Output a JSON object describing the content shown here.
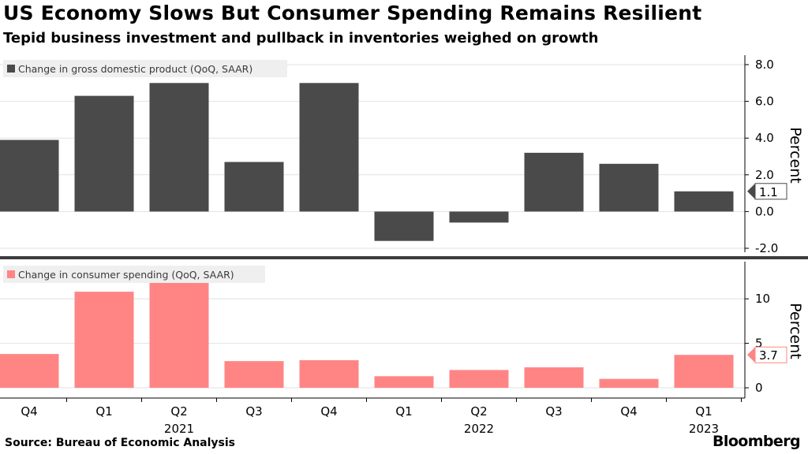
{
  "header": {
    "title": "US Economy Slows But Consumer Spending Remains Resilient",
    "subtitle": "Tepid business investment and pullback in inventories weighed on growth"
  },
  "footer": {
    "source": "Source: Bureau of Economic Analysis",
    "brand": "Bloomberg"
  },
  "colors": {
    "gdp_bar": "#4a4a4a",
    "spending_bar": "#ff8585",
    "grid": "#e2e2e2",
    "divider": "#3c3c3c",
    "axis_line": "#000000"
  },
  "chart_data": [
    {
      "type": "bar",
      "legend": "Change in gross domestic product (QoQ, SAAR)",
      "ylabel": "Percent",
      "categories": [
        "Q4",
        "Q1",
        "Q2",
        "Q3",
        "Q4",
        "Q1",
        "Q2",
        "Q3",
        "Q4",
        "Q1"
      ],
      "year_labels": [
        "",
        "",
        "2021",
        "",
        "",
        "",
        "2022",
        "",
        "",
        "2023"
      ],
      "values": [
        3.9,
        6.3,
        7.0,
        2.7,
        7.0,
        -1.6,
        -0.6,
        3.2,
        2.6,
        1.1
      ],
      "ylim": [
        -2.0,
        8.0
      ],
      "yticks": [
        "8.0",
        "6.0",
        "4.0",
        "2.0",
        "0.0",
        "-2.0"
      ],
      "last_value_label": "1.1",
      "grid": true,
      "legend_position": "top-left",
      "axis_side": "right"
    },
    {
      "type": "bar",
      "legend": "Change in consumer spending (QoQ, SAAR)",
      "ylabel": "Percent",
      "categories": [
        "Q4",
        "Q1",
        "Q2",
        "Q3",
        "Q4",
        "Q1",
        "Q2",
        "Q3",
        "Q4",
        "Q1"
      ],
      "year_labels": [
        "",
        "",
        "2021",
        "",
        "",
        "",
        "2022",
        "",
        "",
        "2023"
      ],
      "values": [
        3.8,
        10.8,
        12.1,
        3.0,
        3.1,
        1.3,
        2.0,
        2.3,
        1.0,
        3.7
      ],
      "ylim": [
        0,
        14
      ],
      "yticks": [
        "10",
        "5",
        "0"
      ],
      "last_value_label": "3.7",
      "grid": true,
      "legend_position": "top-left",
      "axis_side": "right"
    }
  ]
}
